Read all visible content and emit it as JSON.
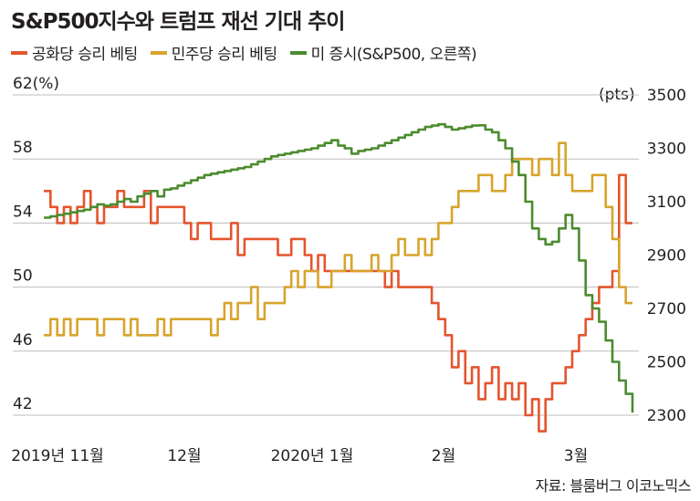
{
  "title": "S&P500지수와 트럼프 재선 기대 추이",
  "source": "자료: 블룸버그 이코노믹스",
  "chart_data": {
    "type": "line",
    "left_axis": {
      "unit_label": "62(%)",
      "ticks": [
        62,
        58,
        54,
        50,
        46,
        42
      ],
      "tick_labels": [
        "62(%)",
        "58",
        "54",
        "50",
        "46",
        "42"
      ],
      "range": [
        42,
        62
      ]
    },
    "right_axis": {
      "unit_label": "(pts)",
      "ticks": [
        3500,
        3300,
        3100,
        2900,
        2700,
        2500,
        2300
      ],
      "range": [
        2300,
        3500
      ]
    },
    "x_labels": [
      "2019년 11월",
      "12월",
      "2020년 1월",
      "2월",
      "3월"
    ],
    "grid": true,
    "legend_position": "top-left",
    "series": [
      {
        "name": "공화당 승리 베팅",
        "axis": "left",
        "color": "#e4552d",
        "values": [
          56,
          55,
          54,
          55,
          54,
          55,
          56,
          55,
          54,
          55,
          55,
          56,
          55,
          55,
          55,
          56,
          54,
          55,
          55,
          55,
          55,
          54,
          53,
          54,
          54,
          53,
          53,
          53,
          54,
          52,
          53,
          53,
          53,
          53,
          53,
          52,
          52,
          53,
          53,
          52,
          51,
          52,
          51,
          51,
          51,
          51,
          51,
          51,
          51,
          51,
          51,
          50,
          51,
          50,
          50,
          50,
          50,
          50,
          49,
          48,
          47,
          45,
          46,
          44,
          45,
          43,
          44,
          45,
          43,
          44,
          43,
          44,
          42,
          43,
          41,
          43,
          44,
          44,
          45,
          46,
          47,
          48,
          49,
          50,
          50,
          51,
          57,
          54,
          54
        ]
      },
      {
        "name": "민주당 승리 베팅",
        "axis": "left",
        "color": "#d8a42c",
        "values": [
          47,
          48,
          47,
          48,
          47,
          48,
          48,
          48,
          47,
          48,
          48,
          48,
          47,
          48,
          47,
          47,
          47,
          48,
          47,
          48,
          48,
          48,
          48,
          48,
          48,
          47,
          48,
          49,
          48,
          49,
          49,
          50,
          48,
          49,
          49,
          49,
          50,
          51,
          50,
          51,
          51,
          50,
          50,
          51,
          51,
          52,
          51,
          51,
          51,
          52,
          51,
          51,
          52,
          53,
          52,
          52,
          53,
          52,
          53,
          54,
          54,
          55,
          56,
          56,
          56,
          57,
          57,
          56,
          56,
          57,
          58,
          58,
          58,
          57,
          58,
          58,
          57,
          59,
          57,
          56,
          56,
          56,
          57,
          57,
          55,
          53,
          50,
          49,
          49
        ]
      },
      {
        "name": "미 증시(S&P500, 오른쪽)",
        "axis": "right",
        "color": "#4c8b2f",
        "values": [
          3040,
          3045,
          3050,
          3055,
          3060,
          3065,
          3070,
          3080,
          3090,
          3085,
          3090,
          3100,
          3110,
          3100,
          3120,
          3130,
          3140,
          3120,
          3145,
          3150,
          3160,
          3170,
          3180,
          3190,
          3200,
          3205,
          3210,
          3215,
          3220,
          3225,
          3230,
          3240,
          3250,
          3260,
          3270,
          3275,
          3280,
          3285,
          3290,
          3295,
          3300,
          3310,
          3320,
          3330,
          3310,
          3300,
          3280,
          3290,
          3295,
          3300,
          3310,
          3320,
          3330,
          3340,
          3350,
          3360,
          3370,
          3380,
          3385,
          3390,
          3380,
          3370,
          3375,
          3380,
          3385,
          3386,
          3370,
          3360,
          3330,
          3300,
          3250,
          3200,
          3100,
          3000,
          2960,
          2940,
          2950,
          3000,
          3050,
          3000,
          2880,
          2750,
          2700,
          2650,
          2580,
          2500,
          2430,
          2380,
          2310
        ]
      }
    ]
  }
}
